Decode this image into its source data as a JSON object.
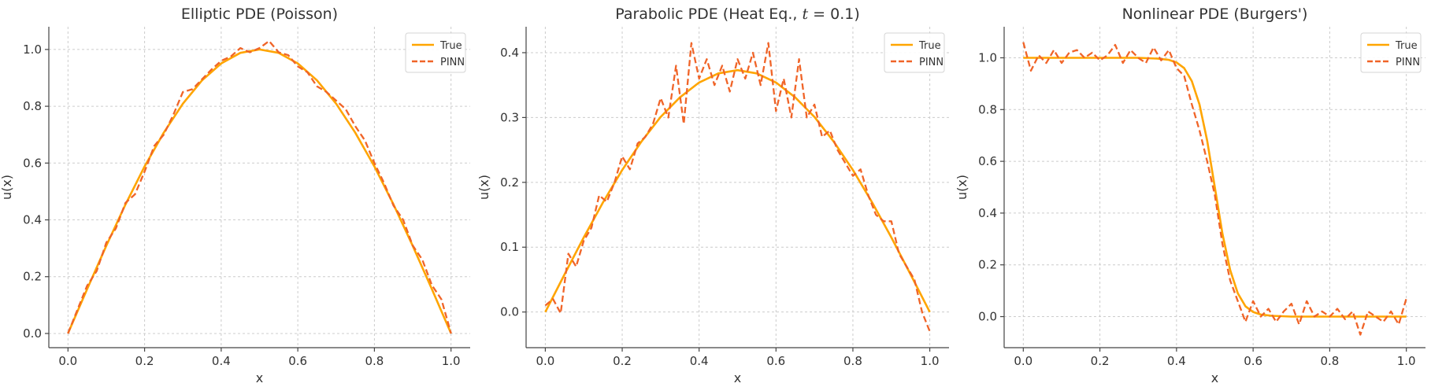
{
  "chart_data": [
    {
      "type": "line",
      "title": "Elliptic PDE (Poisson)",
      "xlabel": "x",
      "ylabel": "u(x)",
      "xlim": [
        -0.05,
        1.05
      ],
      "ylim": [
        -0.05,
        1.08
      ],
      "xticks": [
        "0.0",
        "0.2",
        "0.4",
        "0.6",
        "0.8",
        "1.0"
      ],
      "xtick_values": [
        0.0,
        0.2,
        0.4,
        0.6,
        0.8,
        1.0
      ],
      "yticks": [
        "0.0",
        "0.2",
        "0.4",
        "0.6",
        "0.8",
        "1.0"
      ],
      "ytick_values": [
        0.0,
        0.2,
        0.4,
        0.6,
        0.8,
        1.0
      ],
      "grid": true,
      "legend_position": "top-right",
      "series": [
        {
          "name": "True",
          "color": "#ffa500",
          "style": "solid",
          "x": [
            0.0,
            0.05,
            0.1,
            0.15,
            0.2,
            0.25,
            0.3,
            0.35,
            0.4,
            0.45,
            0.5,
            0.55,
            0.6,
            0.65,
            0.7,
            0.75,
            0.8,
            0.85,
            0.9,
            0.95,
            1.0
          ],
          "y": [
            0.0,
            0.156,
            0.309,
            0.454,
            0.588,
            0.707,
            0.809,
            0.891,
            0.951,
            0.988,
            1.0,
            0.988,
            0.951,
            0.891,
            0.809,
            0.707,
            0.588,
            0.454,
            0.309,
            0.156,
            0.0
          ]
        },
        {
          "name": "PINN",
          "color": "#f06428",
          "style": "dashed",
          "x": [
            0.0,
            0.025,
            0.05,
            0.075,
            0.1,
            0.125,
            0.15,
            0.175,
            0.2,
            0.225,
            0.25,
            0.275,
            0.3,
            0.325,
            0.35,
            0.375,
            0.4,
            0.425,
            0.45,
            0.475,
            0.5,
            0.525,
            0.55,
            0.575,
            0.6,
            0.625,
            0.65,
            0.675,
            0.7,
            0.725,
            0.75,
            0.775,
            0.8,
            0.825,
            0.85,
            0.875,
            0.9,
            0.925,
            0.95,
            0.975,
            1.0
          ],
          "y": [
            0.0,
            0.085,
            0.168,
            0.22,
            0.32,
            0.37,
            0.46,
            0.49,
            0.57,
            0.66,
            0.7,
            0.77,
            0.85,
            0.86,
            0.895,
            0.93,
            0.96,
            0.975,
            1.005,
            0.99,
            1.005,
            1.03,
            0.99,
            0.98,
            0.94,
            0.92,
            0.87,
            0.85,
            0.82,
            0.79,
            0.73,
            0.68,
            0.6,
            0.53,
            0.45,
            0.4,
            0.31,
            0.26,
            0.17,
            0.12,
            0.0
          ]
        }
      ]
    },
    {
      "type": "line",
      "title": "Parabolic PDE (Heat Eq., ",
      "title_math": "t",
      "title_suffix": " = 0.1)",
      "xlabel": "x",
      "ylabel": "u(x)",
      "xlim": [
        -0.05,
        1.05
      ],
      "ylim": [
        -0.055,
        0.44
      ],
      "xticks": [
        "0.0",
        "0.2",
        "0.4",
        "0.6",
        "0.8",
        "1.0"
      ],
      "xtick_values": [
        0.0,
        0.2,
        0.4,
        0.6,
        0.8,
        1.0
      ],
      "yticks": [
        "0.0",
        "0.1",
        "0.2",
        "0.3",
        "0.4"
      ],
      "ytick_values": [
        0.0,
        0.1,
        0.2,
        0.3,
        0.4
      ],
      "grid": true,
      "legend_position": "top-right",
      "series": [
        {
          "name": "True",
          "color": "#ffa500",
          "style": "solid",
          "x": [
            0.0,
            0.05,
            0.1,
            0.15,
            0.2,
            0.25,
            0.3,
            0.35,
            0.4,
            0.45,
            0.5,
            0.55,
            0.6,
            0.65,
            0.7,
            0.75,
            0.8,
            0.85,
            0.9,
            0.95,
            1.0
          ],
          "y": [
            0.0,
            0.058,
            0.115,
            0.169,
            0.219,
            0.263,
            0.301,
            0.331,
            0.354,
            0.368,
            0.373,
            0.368,
            0.354,
            0.331,
            0.301,
            0.263,
            0.219,
            0.169,
            0.115,
            0.058,
            0.0
          ]
        },
        {
          "name": "PINN",
          "color": "#f06428",
          "style": "dashed",
          "x": [
            0.0,
            0.02,
            0.04,
            0.06,
            0.08,
            0.1,
            0.12,
            0.14,
            0.16,
            0.18,
            0.2,
            0.22,
            0.24,
            0.26,
            0.28,
            0.3,
            0.32,
            0.34,
            0.36,
            0.38,
            0.4,
            0.42,
            0.44,
            0.46,
            0.48,
            0.5,
            0.52,
            0.54,
            0.56,
            0.58,
            0.6,
            0.62,
            0.64,
            0.66,
            0.68,
            0.7,
            0.72,
            0.74,
            0.76,
            0.78,
            0.8,
            0.82,
            0.84,
            0.86,
            0.88,
            0.9,
            0.92,
            0.94,
            0.96,
            0.98,
            1.0
          ],
          "y": [
            0.01,
            0.02,
            -0.002,
            0.09,
            0.07,
            0.11,
            0.13,
            0.18,
            0.17,
            0.2,
            0.24,
            0.22,
            0.26,
            0.27,
            0.29,
            0.33,
            0.3,
            0.38,
            0.29,
            0.415,
            0.36,
            0.39,
            0.35,
            0.38,
            0.34,
            0.39,
            0.36,
            0.4,
            0.35,
            0.415,
            0.31,
            0.36,
            0.3,
            0.39,
            0.3,
            0.32,
            0.27,
            0.28,
            0.25,
            0.23,
            0.21,
            0.22,
            0.18,
            0.15,
            0.14,
            0.14,
            0.09,
            0.07,
            0.05,
            0.0,
            -0.03
          ]
        }
      ]
    },
    {
      "type": "line",
      "title": "Nonlinear PDE (Burgers')",
      "xlabel": "x",
      "ylabel": "u(x)",
      "xlim": [
        -0.05,
        1.05
      ],
      "ylim": [
        -0.12,
        1.12
      ],
      "xticks": [
        "0.0",
        "0.2",
        "0.4",
        "0.6",
        "0.8",
        "1.0"
      ],
      "xtick_values": [
        0.0,
        0.2,
        0.4,
        0.6,
        0.8,
        1.0
      ],
      "yticks": [
        "0.0",
        "0.2",
        "0.4",
        "0.6",
        "0.8",
        "1.0"
      ],
      "ytick_values": [
        0.0,
        0.2,
        0.4,
        0.6,
        0.8,
        1.0
      ],
      "grid": true,
      "legend_position": "top-right",
      "series": [
        {
          "name": "True",
          "color": "#ffa500",
          "style": "solid",
          "x": [
            0.0,
            0.1,
            0.2,
            0.3,
            0.35,
            0.38,
            0.4,
            0.42,
            0.44,
            0.46,
            0.48,
            0.5,
            0.52,
            0.54,
            0.56,
            0.58,
            0.6,
            0.62,
            0.65,
            0.7,
            0.8,
            0.9,
            1.0
          ],
          "y": [
            1.0,
            1.0,
            1.0,
            1.0,
            0.997,
            0.992,
            0.982,
            0.96,
            0.91,
            0.82,
            0.68,
            0.5,
            0.32,
            0.18,
            0.09,
            0.04,
            0.018,
            0.008,
            0.003,
            0.0,
            0.0,
            0.0,
            0.0
          ]
        },
        {
          "name": "PINN",
          "color": "#f06428",
          "style": "dashed",
          "x": [
            0.0,
            0.02,
            0.04,
            0.06,
            0.08,
            0.1,
            0.12,
            0.14,
            0.16,
            0.18,
            0.2,
            0.22,
            0.24,
            0.26,
            0.28,
            0.3,
            0.32,
            0.34,
            0.36,
            0.38,
            0.4,
            0.42,
            0.44,
            0.46,
            0.48,
            0.5,
            0.52,
            0.54,
            0.56,
            0.58,
            0.6,
            0.62,
            0.64,
            0.66,
            0.68,
            0.7,
            0.72,
            0.74,
            0.76,
            0.78,
            0.8,
            0.82,
            0.84,
            0.86,
            0.88,
            0.9,
            0.92,
            0.94,
            0.96,
            0.98,
            1.0
          ],
          "y": [
            1.06,
            0.95,
            1.01,
            0.98,
            1.03,
            0.98,
            1.02,
            1.03,
            1.0,
            1.02,
            0.99,
            1.01,
            1.05,
            0.98,
            1.03,
            1.0,
            0.98,
            1.04,
            0.99,
            1.03,
            0.96,
            0.93,
            0.82,
            0.72,
            0.6,
            0.47,
            0.28,
            0.14,
            0.06,
            -0.02,
            0.06,
            0.0,
            0.03,
            -0.02,
            0.02,
            0.05,
            -0.03,
            0.06,
            0.0,
            0.02,
            0.0,
            0.03,
            -0.01,
            0.02,
            -0.07,
            0.02,
            0.0,
            -0.02,
            0.02,
            -0.03,
            0.07
          ]
        }
      ]
    }
  ]
}
